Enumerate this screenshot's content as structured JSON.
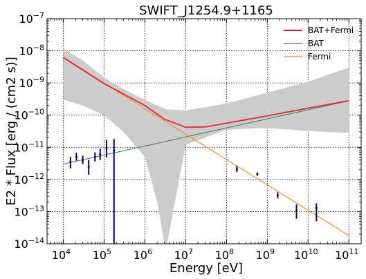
{
  "chart_data": {
    "type": "line",
    "title": "SWIFT_J1254.9+1165",
    "xlabel": "Energy [eV]",
    "ylabel": "E2 * Flux [erg / (cm2 s)]",
    "xscale": "log",
    "yscale": "log",
    "xlim": [
      4000,
      200000000000
    ],
    "ylim": [
      1e-14,
      1e-07
    ],
    "xticks": [
      {
        "base": "10",
        "exp": "4",
        "value": 10000
      },
      {
        "base": "10",
        "exp": "5",
        "value": 100000
      },
      {
        "base": "10",
        "exp": "6",
        "value": 1000000
      },
      {
        "base": "10",
        "exp": "7",
        "value": 10000000
      },
      {
        "base": "10",
        "exp": "8",
        "value": 100000000
      },
      {
        "base": "10",
        "exp": "9",
        "value": 1000000000
      },
      {
        "base": "10",
        "exp": "10",
        "value": 10000000000
      },
      {
        "base": "10",
        "exp": "11",
        "value": 100000000000
      }
    ],
    "yticks": [
      {
        "base": "10",
        "exp": "−14",
        "value": 1e-14
      },
      {
        "base": "10",
        "exp": "−13",
        "value": 1e-13
      },
      {
        "base": "10",
        "exp": "−12",
        "value": 1e-12
      },
      {
        "base": "10",
        "exp": "−11",
        "value": 1e-11
      },
      {
        "base": "10",
        "exp": "−10",
        "value": 1e-10
      },
      {
        "base": "10",
        "exp": "−9",
        "value": 1e-09
      },
      {
        "base": "10",
        "exp": "−8",
        "value": 1e-08
      },
      {
        "base": "10",
        "exp": "−7",
        "value": 1e-07
      }
    ],
    "grid": true,
    "legend_position": "top-right",
    "legend": [
      {
        "label": "BAT+Fermi",
        "color": "#e41a2c"
      },
      {
        "label": "BAT",
        "color": "#3a8a4f"
      },
      {
        "label": "Fermi",
        "color": "#f28e1c"
      }
    ],
    "series": [
      {
        "name": "BAT",
        "color": "#3a8a4f",
        "x": [
          10000,
          100000000000
        ],
        "y": [
          3e-12,
          2.8e-10
        ]
      },
      {
        "name": "Fermi",
        "color": "#f28e1c",
        "x": [
          10000,
          100000000000
        ],
        "y": [
          6e-09,
          1.8e-14
        ]
      },
      {
        "name": "BAT+Fermi",
        "color": "#e41a2c",
        "x": [
          10000,
          100000,
          1000000,
          3000000,
          10000000,
          30000000,
          100000000,
          1000000000,
          10000000000,
          100000000000
        ],
        "y": [
          6.2e-09,
          9.6e-10,
          2e-10,
          7.5e-11,
          4.2e-11,
          4.3e-11,
          5.6e-11,
          9.5e-11,
          1.65e-10,
          2.8e-10
        ]
      }
    ],
    "confidence_band": {
      "color": "#cccccc",
      "x": [
        10000,
        30000,
        100000,
        300000,
        1000000,
        2000000,
        3000000,
        3500000,
        3500000,
        10000000,
        100000000,
        1000000000,
        10000000000,
        100000000000
      ],
      "upper": [
        1.2e-08,
        5e-09,
        1.5e-09,
        6.5e-10,
        3e-10,
        2e-10,
        1.6e-10,
        1.5e-10,
        1.5e-10,
        1.4e-10,
        2.3e-10,
        5e-10,
        1.1e-09,
        3e-09
      ],
      "lower": [
        3e-10,
        2e-10,
        1e-10,
        3e-11,
        5e-12,
        2e-13,
        1e-14,
        1e-14,
        1e-14,
        1.2e-11,
        3.5e-11,
        4e-11,
        3.2e-11,
        2.8e-11
      ]
    },
    "data_points": {
      "color": "#00007f",
      "points": [
        {
          "x": 15000,
          "y": 3.5e-12,
          "ylo": 2.2e-12,
          "yhi": 5e-12
        },
        {
          "x": 21000,
          "y": 5e-12,
          "ylo": 3.8e-12,
          "yhi": 6.8e-12
        },
        {
          "x": 30000,
          "y": 4e-12,
          "ylo": 3e-12,
          "yhi": 5.5e-12
        },
        {
          "x": 42000,
          "y": 2.5e-12,
          "ylo": 1.4e-12,
          "yhi": 4e-12
        },
        {
          "x": 60000,
          "y": 5e-12,
          "ylo": 3.6e-12,
          "yhi": 7e-12
        },
        {
          "x": 80000,
          "y": 6e-12,
          "ylo": 4e-12,
          "yhi": 9e-12
        },
        {
          "x": 115000,
          "y": 9e-12,
          "ylo": 4.8e-12,
          "yhi": 1.7e-11
        },
        {
          "x": 175000,
          "y": 8e-12,
          "ylo": 1e-14,
          "yhi": 1.8e-11
        },
        {
          "x": 180000000,
          "y": 2.1e-12,
          "ylo": 1.7e-12,
          "yhi": 2.6e-12
        },
        {
          "x": 570000000,
          "y": 1.45e-12,
          "ylo": 1.3e-12,
          "yhi": 1.65e-12
        },
        {
          "x": 1800000000,
          "y": 3.2e-13,
          "ylo": 2.6e-13,
          "yhi": 4e-13
        },
        {
          "x": 5200000000,
          "y": 1.1e-13,
          "ylo": 6e-14,
          "yhi": 1.7e-13
        },
        {
          "x": 16000000000,
          "y": 1.3e-13,
          "ylo": 5e-14,
          "yhi": 1.8e-13
        }
      ]
    }
  }
}
